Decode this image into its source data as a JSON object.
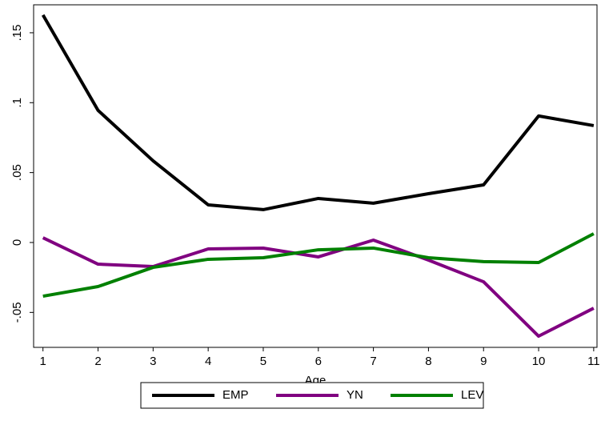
{
  "chart_data": {
    "type": "line",
    "x_label": "Age",
    "x": [
      1,
      2,
      3,
      4,
      5,
      6,
      7,
      8,
      9,
      10,
      11
    ],
    "xlim": [
      0.83,
      11.06
    ],
    "xticks": [
      1,
      2,
      3,
      4,
      5,
      6,
      7,
      8,
      9,
      10,
      11
    ],
    "ylim": [
      -0.075,
      0.17
    ],
    "yticks": [
      {
        "value": -0.05,
        "label": "-.05"
      },
      0,
      {
        "value": 0.05,
        "label": ".05"
      },
      {
        "value": 0.1,
        "label": ".1"
      },
      {
        "value": 0.15,
        "label": ".15"
      }
    ],
    "legend": "bottom",
    "series": [
      {
        "name": "EMP",
        "color": "#000000",
        "values": [
          0.1627,
          0.0945,
          0.0584,
          0.0269,
          0.0235,
          0.0315,
          0.0281,
          0.0349,
          0.0412,
          0.0905,
          0.0836
        ]
      },
      {
        "name": "YN",
        "color": "#800080",
        "values": [
          0.0034,
          -0.0155,
          -0.0172,
          -0.0046,
          -0.004,
          -0.0103,
          0.0017,
          -0.0126,
          -0.0281,
          -0.067,
          -0.047
        ]
      },
      {
        "name": "LEV",
        "color": "#008000",
        "values": [
          -0.0384,
          -0.0315,
          -0.0178,
          -0.012,
          -0.0109,
          -0.0052,
          -0.004,
          -0.0109,
          -0.0137,
          -0.0143,
          0.0063
        ]
      }
    ]
  }
}
